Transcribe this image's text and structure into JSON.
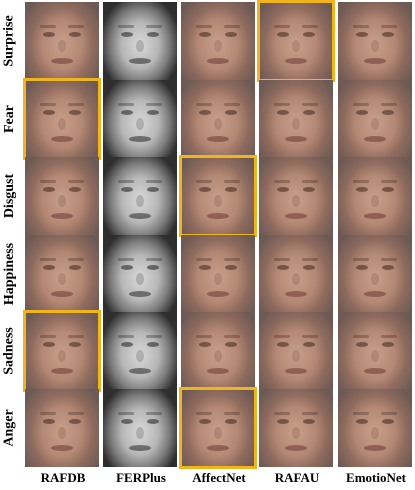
{
  "row_labels": [
    "Surprise",
    "Fear",
    "Disgust",
    "Happiness",
    "Sadness",
    "Anger"
  ],
  "column_labels": [
    "RAFDB",
    "FERPlus",
    "AffectNet",
    "RAFAU",
    "EmotioNet"
  ],
  "highlight_color": "#f0b41c",
  "highlighted_cells": [
    {
      "row": "Surprise",
      "column": "RAFAU"
    },
    {
      "row": "Fear",
      "column": "RAFDB"
    },
    {
      "row": "Disgust",
      "column": "AffectNet"
    },
    {
      "row": "Sadness",
      "column": "RAFDB"
    },
    {
      "row": "Anger",
      "column": "AffectNet"
    }
  ],
  "grayscale_column": "FERPlus"
}
